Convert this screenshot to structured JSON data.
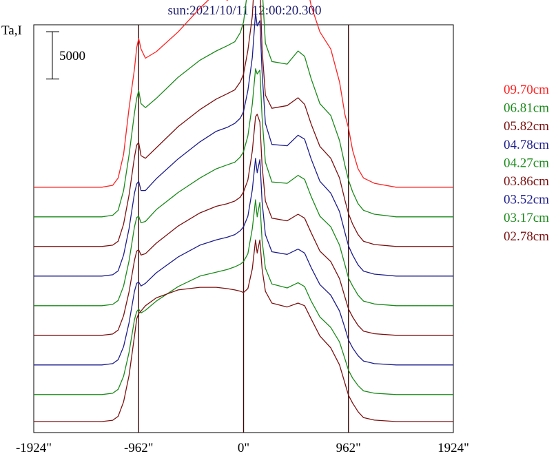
{
  "chart_data": {
    "type": "line",
    "title": "sun:2021/10/11 12:00:20.300",
    "ylabel": "Ta,I",
    "scale_bar": {
      "label": "5000",
      "value": 5000
    },
    "xlim": [
      -1924,
      1924
    ],
    "x_ticks": [
      {
        "value": -1924,
        "label": "-1924\""
      },
      {
        "value": -962,
        "label": "-962\""
      },
      {
        "value": 0,
        "label": "0\""
      },
      {
        "value": 962,
        "label": "962\""
      },
      {
        "value": 1924,
        "label": "1924\""
      }
    ],
    "vlines": [
      -962,
      0,
      962
    ],
    "profile_x": [
      -1924,
      -1300,
      -1200,
      -1150,
      -1100,
      -1050,
      -1000,
      -980,
      -962,
      -940,
      -900,
      -800,
      -600,
      -400,
      -250,
      -150,
      -80,
      -30,
      0,
      40,
      80,
      110,
      125,
      150,
      170,
      200,
      260,
      400,
      500,
      560,
      620,
      700,
      800,
      880,
      930,
      962,
      1000,
      1050,
      1100,
      1200,
      1400,
      1924
    ],
    "series": [
      {
        "name": "09.70cm",
        "color": "#ff2020",
        "baseline": 17800,
        "profile": [
          0,
          0,
          150,
          700,
          2500,
          6000,
          9000,
          10600,
          11300,
          10500,
          9800,
          10300,
          11800,
          13600,
          14800,
          14200,
          14600,
          16200,
          17700,
          20800,
          24500,
          32000,
          33000,
          29000,
          22500,
          16200,
          14300,
          14600,
          16800,
          16200,
          13800,
          11800,
          10500,
          8000,
          5500,
          4500,
          2800,
          1400,
          700,
          300,
          0,
          0
        ]
      },
      {
        "name": "06.81cm",
        "color": "#1a8a1a",
        "baseline": 15550,
        "profile": [
          0,
          0,
          120,
          500,
          2000,
          4700,
          7900,
          9000,
          9600,
          8600,
          8300,
          9000,
          10600,
          11900,
          12600,
          13000,
          13300,
          14000,
          14800,
          17400,
          20800,
          25600,
          26500,
          22800,
          17500,
          13200,
          11800,
          11600,
          12600,
          12200,
          10500,
          8600,
          7700,
          5800,
          3900,
          2800,
          1900,
          1000,
          500,
          200,
          0,
          0
        ]
      },
      {
        "name": "05.82cm",
        "color": "#7b1010",
        "baseline": 13300,
        "profile": [
          0,
          0,
          100,
          400,
          1700,
          3900,
          6800,
          7700,
          7900,
          6900,
          6700,
          7500,
          9100,
          10400,
          11200,
          11600,
          11900,
          12500,
          13100,
          14900,
          17500,
          21800,
          23300,
          20000,
          15000,
          11500,
          10500,
          10700,
          11300,
          10800,
          9300,
          7600,
          6700,
          5200,
          3500,
          2500,
          1700,
          900,
          400,
          150,
          0,
          0
        ]
      },
      {
        "name": "04.78cm",
        "color": "#1c1c8c",
        "baseline": 11050,
        "profile": [
          0,
          0,
          100,
          400,
          1600,
          3600,
          6300,
          7000,
          7200,
          6500,
          6500,
          7400,
          8900,
          10200,
          11000,
          11300,
          11600,
          12000,
          12500,
          14100,
          16600,
          20000,
          19000,
          19400,
          15500,
          11600,
          10000,
          9900,
          10700,
          10400,
          8900,
          7200,
          6300,
          4900,
          3300,
          2300,
          1600,
          850,
          380,
          150,
          0,
          0
        ]
      },
      {
        "name": "04.27cm",
        "color": "#1a8a1a",
        "baseline": 8800,
        "profile": [
          0,
          0,
          100,
          400,
          1500,
          3400,
          6000,
          6700,
          6800,
          6300,
          6400,
          7300,
          8600,
          9700,
          10400,
          10700,
          10900,
          11300,
          11700,
          12900,
          15300,
          18000,
          17600,
          17900,
          14300,
          10900,
          9400,
          9300,
          9900,
          9600,
          8300,
          6800,
          6000,
          4600,
          3100,
          2100,
          1500,
          800,
          350,
          130,
          0,
          0
        ]
      },
      {
        "name": "03.86cm",
        "color": "#7b1010",
        "baseline": 6550,
        "profile": [
          0,
          0,
          100,
          400,
          1500,
          3300,
          5700,
          6400,
          6500,
          6100,
          6200,
          7000,
          8300,
          9300,
          9800,
          10000,
          10200,
          10500,
          10900,
          11800,
          14000,
          16600,
          16800,
          16200,
          12900,
          10200,
          8900,
          8700,
          9200,
          8900,
          7800,
          6400,
          5600,
          4300,
          2900,
          2000,
          1400,
          750,
          320,
          120,
          0,
          0
        ]
      },
      {
        "name": "03.52cm",
        "color": "#1c1c8c",
        "baseline": 4300,
        "profile": [
          0,
          0,
          100,
          400,
          1400,
          3200,
          5600,
          6200,
          6300,
          6000,
          6200,
          7000,
          8200,
          9100,
          9500,
          9700,
          9900,
          10200,
          10500,
          11300,
          13300,
          15700,
          14600,
          15600,
          12400,
          9900,
          8600,
          8400,
          8800,
          8500,
          7400,
          6100,
          5300,
          4100,
          2800,
          1900,
          1300,
          700,
          300,
          100,
          0,
          0
        ]
      },
      {
        "name": "03.17cm",
        "color": "#1a8a1a",
        "baseline": 2050,
        "profile": [
          0,
          0,
          100,
          400,
          1400,
          3200,
          5700,
          6300,
          6500,
          6200,
          6400,
          7100,
          8200,
          9000,
          9300,
          9500,
          9700,
          9900,
          10100,
          10700,
          12600,
          14800,
          13500,
          14600,
          11700,
          9600,
          8400,
          8100,
          8500,
          8200,
          7100,
          5900,
          5100,
          4000,
          2700,
          1850,
          1250,
          680,
          280,
          100,
          0,
          0
        ]
      },
      {
        "name": "02.78cm",
        "color": "#7b1010",
        "baseline": 0,
        "profile": [
          0,
          0,
          100,
          400,
          1500,
          3500,
          6500,
          7800,
          8200,
          8400,
          8800,
          9400,
          10000,
          10200,
          10200,
          10100,
          10000,
          9900,
          9800,
          10100,
          11600,
          13800,
          12800,
          13800,
          11600,
          9900,
          9000,
          8700,
          9000,
          8800,
          7800,
          6500,
          5600,
          4300,
          2900,
          2000,
          1400,
          750,
          300,
          110,
          0,
          0
        ]
      }
    ],
    "grid": false,
    "legend_placement": "right"
  }
}
